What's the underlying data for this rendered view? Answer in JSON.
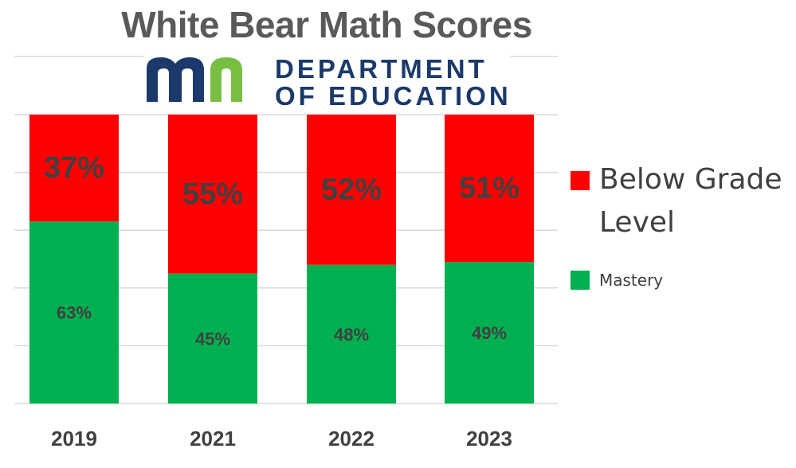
{
  "title": "White Bear Math Scores",
  "logo": {
    "text_line1": "DEPARTMENT",
    "text_line2": "OF EDUCATION"
  },
  "colors": {
    "below": "#ff0000",
    "mastery": "#00b050",
    "label_text": "#404040",
    "grid": "#d9d9d9",
    "logo_navy": "#1b3a6b",
    "logo_green": "#78be43"
  },
  "legend": {
    "below_label_line1": "Below Grade",
    "below_label_line2": "Level",
    "mastery_label": "Mastery"
  },
  "chart_data": {
    "type": "bar",
    "stacked": true,
    "categories": [
      "2019",
      "2021",
      "2022",
      "2023"
    ],
    "series": [
      {
        "name": "Mastery",
        "values": [
          63,
          45,
          48,
          49
        ],
        "labels": [
          "63%",
          "45%",
          "48%",
          "49%"
        ]
      },
      {
        "name": "Below Grade Level",
        "values": [
          37,
          55,
          52,
          51
        ],
        "labels": [
          "37%",
          "55%",
          "52%",
          "51%"
        ]
      }
    ],
    "ylim": [
      0,
      100
    ],
    "grid": true,
    "legend_position": "right"
  }
}
